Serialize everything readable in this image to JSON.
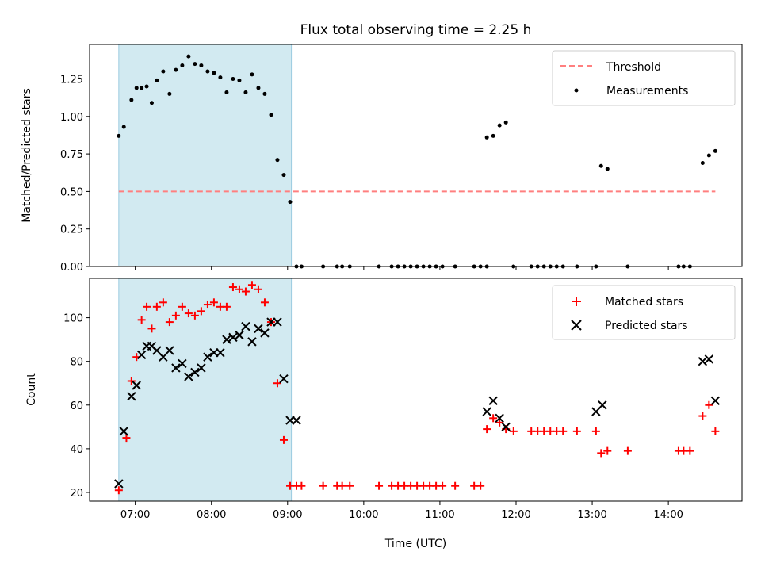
{
  "chart_data": [
    {
      "type": "scatter",
      "title": "Flux total observing time = 2.25 h",
      "xlabel": "",
      "ylabel": "Matched/Predicted stars",
      "xlim": [
        "06:24",
        "14:58"
      ],
      "ylim": [
        0,
        1.48
      ],
      "yticks": [
        "0.00",
        "0.25",
        "0.50",
        "0.75",
        "1.00",
        "1.25"
      ],
      "ytick_values": [
        0,
        0.25,
        0.5,
        0.75,
        1.0,
        1.25
      ],
      "xticks": [
        "07:00",
        "08:00",
        "09:00",
        "10:00",
        "11:00",
        "12:00",
        "13:00",
        "14:00"
      ],
      "shaded_span": {
        "from": "06:47",
        "to": "09:03",
        "color": "#add8e6"
      },
      "legend_position": "top-right",
      "threshold": {
        "name": "Threshold",
        "value": 0.5,
        "x": [
          "06:47",
          "14:37"
        ],
        "color": "#ff7f7f",
        "style": "dashed"
      },
      "series": [
        {
          "name": "Measurements",
          "color": "#000000",
          "x": [
            "06:47",
            "06:51",
            "06:57",
            "07:01",
            "07:05",
            "07:09",
            "07:13",
            "07:17",
            "07:22",
            "07:27",
            "07:32",
            "07:37",
            "07:42",
            "07:47",
            "07:52",
            "07:57",
            "08:02",
            "08:07",
            "08:12",
            "08:17",
            "08:22",
            "08:27",
            "08:32",
            "08:37",
            "08:42",
            "08:47",
            "08:52",
            "08:57",
            "09:02",
            "09:07",
            "09:11",
            "09:28",
            "09:39",
            "09:43",
            "09:49",
            "10:12",
            "10:22",
            "10:27",
            "10:32",
            "10:37",
            "10:42",
            "10:47",
            "10:52",
            "10:57",
            "11:02",
            "11:12",
            "11:27",
            "11:32",
            "11:37",
            "11:37",
            "11:42",
            "11:47",
            "11:52",
            "11:58",
            "12:12",
            "12:17",
            "12:22",
            "12:27",
            "12:32",
            "12:37",
            "12:48",
            "13:03",
            "13:07",
            "13:12",
            "13:28",
            "14:08",
            "14:12",
            "14:17",
            "14:27",
            "14:32",
            "14:37"
          ],
          "y": [
            0.87,
            0.93,
            1.11,
            1.19,
            1.19,
            1.2,
            1.09,
            1.24,
            1.3,
            1.15,
            1.31,
            1.34,
            1.4,
            1.35,
            1.34,
            1.3,
            1.29,
            1.26,
            1.16,
            1.25,
            1.24,
            1.16,
            1.28,
            1.19,
            1.15,
            1.01,
            0.71,
            0.61,
            0.43,
            0.0,
            0.0,
            0.0,
            0.0,
            0.0,
            0.0,
            0.0,
            0.0,
            0.0,
            0.0,
            0.0,
            0.0,
            0.0,
            0.0,
            0.0,
            0.0,
            0.0,
            0.0,
            0.0,
            0.86,
            0.0,
            0.87,
            0.94,
            0.96,
            0.0,
            0.0,
            0.0,
            0.0,
            0.0,
            0.0,
            0.0,
            0.0,
            0.0,
            0.67,
            0.65,
            0.0,
            0.0,
            0.0,
            0.0,
            0.69,
            0.74,
            0.77
          ]
        }
      ]
    },
    {
      "type": "scatter",
      "title": "",
      "xlabel": "Time (UTC)",
      "ylabel": "Count",
      "xlim": [
        "06:24",
        "14:58"
      ],
      "ylim": [
        16,
        118
      ],
      "yticks": [
        "20",
        "40",
        "60",
        "80",
        "100"
      ],
      "ytick_values": [
        20,
        40,
        60,
        80,
        100
      ],
      "xticks": [
        "07:00",
        "08:00",
        "09:00",
        "10:00",
        "11:00",
        "12:00",
        "13:00",
        "14:00"
      ],
      "shaded_span": {
        "from": "06:47",
        "to": "09:03",
        "color": "#add8e6"
      },
      "legend_position": "top-right",
      "series": [
        {
          "name": "Matched stars",
          "marker": "plus",
          "color": "#ff0000",
          "x": [
            "06:47",
            "06:53",
            "06:57",
            "07:01",
            "07:05",
            "07:09",
            "07:13",
            "07:17",
            "07:22",
            "07:27",
            "07:32",
            "07:37",
            "07:42",
            "07:47",
            "07:52",
            "07:57",
            "08:02",
            "08:07",
            "08:12",
            "08:17",
            "08:22",
            "08:27",
            "08:32",
            "08:37",
            "08:42",
            "08:47",
            "08:52",
            "08:57",
            "09:02",
            "09:07",
            "09:11",
            "09:28",
            "09:39",
            "09:43",
            "09:49",
            "10:12",
            "10:22",
            "10:27",
            "10:32",
            "10:37",
            "10:42",
            "10:47",
            "10:52",
            "10:57",
            "11:02",
            "11:12",
            "11:27",
            "11:32",
            "11:37",
            "11:42",
            "11:47",
            "11:52",
            "11:58",
            "12:12",
            "12:17",
            "12:22",
            "12:27",
            "12:32",
            "12:37",
            "12:48",
            "13:03",
            "13:07",
            "13:12",
            "13:28",
            "14:08",
            "14:12",
            "14:17",
            "14:27",
            "14:32",
            "14:37"
          ],
          "y": [
            21,
            45,
            71,
            82,
            99,
            105,
            95,
            105,
            107,
            98,
            101,
            105,
            102,
            101,
            103,
            106,
            107,
            105,
            105,
            114,
            113,
            112,
            115,
            113,
            107,
            98,
            70,
            44,
            23,
            23,
            23,
            23,
            23,
            23,
            23,
            23,
            23,
            23,
            23,
            23,
            23,
            23,
            23,
            23,
            23,
            23,
            23,
            23,
            49,
            54,
            52,
            49,
            48,
            48,
            48,
            48,
            48,
            48,
            48,
            48,
            48,
            38,
            39,
            39,
            39,
            39,
            39,
            55,
            60,
            48
          ]
        },
        {
          "name": "Predicted stars",
          "marker": "x",
          "color": "#000000",
          "x": [
            "06:47",
            "06:51",
            "06:57",
            "07:01",
            "07:05",
            "07:09",
            "07:13",
            "07:17",
            "07:22",
            "07:27",
            "07:32",
            "07:37",
            "07:42",
            "07:47",
            "07:52",
            "07:57",
            "08:02",
            "08:07",
            "08:12",
            "08:17",
            "08:22",
            "08:27",
            "08:32",
            "08:37",
            "08:42",
            "08:47",
            "08:52",
            "08:57",
            "09:02",
            "09:07",
            "11:37",
            "11:42",
            "11:47",
            "11:52",
            "13:03",
            "13:08",
            "14:27",
            "14:32",
            "14:37"
          ],
          "y": [
            24,
            48,
            64,
            69,
            83,
            87,
            87,
            85,
            82,
            85,
            77,
            79,
            73,
            75,
            77,
            82,
            84,
            84,
            90,
            91,
            92,
            96,
            89,
            95,
            93,
            98,
            98,
            72,
            53,
            53,
            57,
            62,
            54,
            50,
            57,
            60,
            80,
            81,
            62
          ]
        }
      ]
    }
  ]
}
